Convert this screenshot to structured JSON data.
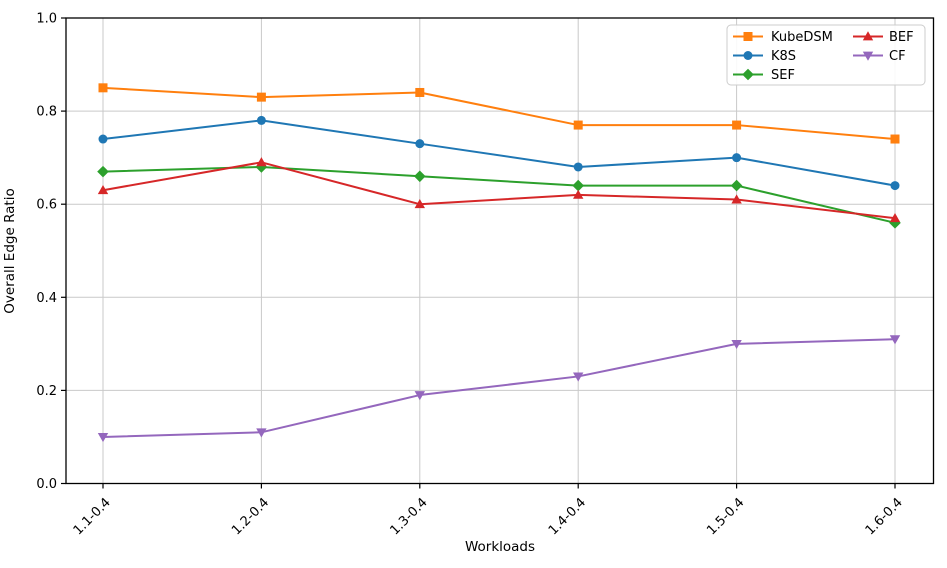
{
  "chart_data": {
    "type": "line",
    "title": "",
    "xlabel": "Workloads",
    "ylabel": "Overall Edge Ratio",
    "categories": [
      "1.1-0.4",
      "1.2-0.4",
      "1.3-0.4",
      "1.4-0.4",
      "1.5-0.4",
      "1.6-0.4"
    ],
    "ylim": [
      0.0,
      1.0
    ],
    "yticks": [
      0.0,
      0.2,
      0.4,
      0.6,
      0.8,
      1.0
    ],
    "ytick_labels": [
      "0.0",
      "0.2",
      "0.4",
      "0.6",
      "0.8",
      "1.0"
    ],
    "grid": true,
    "legend": {
      "position": "upper right",
      "ncol": 2,
      "column_break": 3
    },
    "series": [
      {
        "name": "KubeDSM",
        "color": "#ff7f0e",
        "marker": "square",
        "values": [
          0.85,
          0.83,
          0.84,
          0.77,
          0.77,
          0.74
        ]
      },
      {
        "name": "K8S",
        "color": "#1f77b4",
        "marker": "circle",
        "values": [
          0.74,
          0.78,
          0.73,
          0.68,
          0.7,
          0.64
        ]
      },
      {
        "name": "SEF",
        "color": "#2ca02c",
        "marker": "diamond",
        "values": [
          0.67,
          0.68,
          0.66,
          0.64,
          0.64,
          0.56
        ]
      },
      {
        "name": "BEF",
        "color": "#d62728",
        "marker": "triangle-up",
        "values": [
          0.63,
          0.69,
          0.6,
          0.62,
          0.61,
          0.57
        ]
      },
      {
        "name": "CF",
        "color": "#9467bd",
        "marker": "triangle-down",
        "values": [
          0.1,
          0.11,
          0.19,
          0.23,
          0.3,
          0.31
        ]
      }
    ]
  }
}
